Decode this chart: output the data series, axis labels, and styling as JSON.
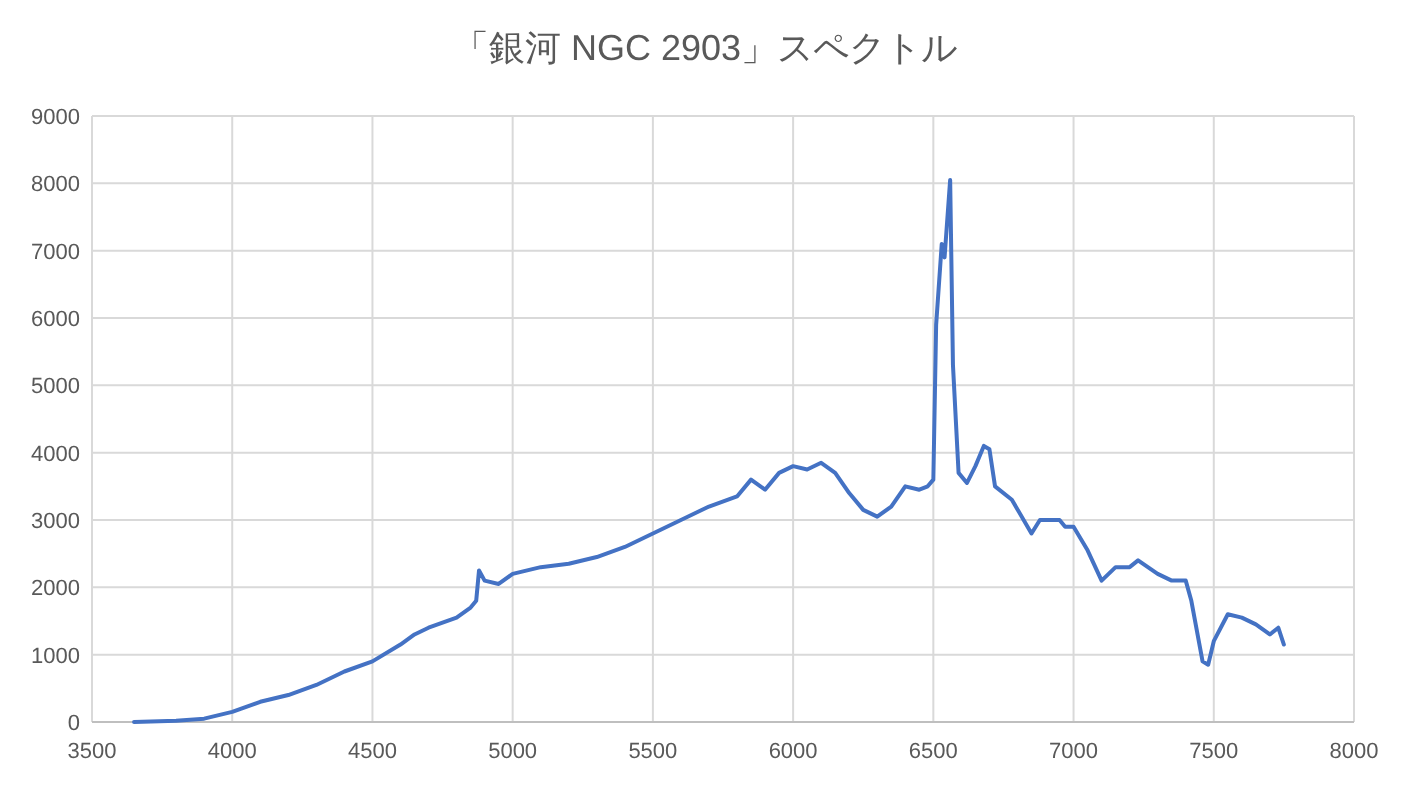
{
  "chart_data": {
    "type": "line",
    "title": "「銀河 NGC 2903」スペクトル",
    "x": [
      3650,
      3800,
      3900,
      4000,
      4100,
      4200,
      4300,
      4400,
      4500,
      4600,
      4650,
      4700,
      4800,
      4850,
      4870,
      4880,
      4900,
      4950,
      5000,
      5100,
      5200,
      5300,
      5400,
      5500,
      5600,
      5700,
      5800,
      5850,
      5900,
      5950,
      6000,
      6050,
      6100,
      6150,
      6200,
      6250,
      6300,
      6350,
      6400,
      6450,
      6480,
      6500,
      6510,
      6530,
      6540,
      6560,
      6570,
      6590,
      6620,
      6650,
      6680,
      6700,
      6720,
      6780,
      6850,
      6880,
      6950,
      6970,
      7000,
      7050,
      7100,
      7150,
      7200,
      7230,
      7300,
      7350,
      7400,
      7420,
      7460,
      7480,
      7500,
      7550,
      7600,
      7650,
      7700,
      7730,
      7750
    ],
    "series": [
      {
        "color": "#4472c4",
        "values": [
          0,
          20,
          50,
          150,
          300,
          400,
          550,
          750,
          900,
          1150,
          1300,
          1400,
          1550,
          1700,
          1800,
          2250,
          2100,
          2050,
          2200,
          2300,
          2350,
          2450,
          2600,
          2800,
          3000,
          3200,
          3350,
          3600,
          3450,
          3700,
          3800,
          3750,
          3850,
          3700,
          3400,
          3150,
          3050,
          3200,
          3500,
          3450,
          3500,
          3600,
          5900,
          7100,
          6900,
          8050,
          5300,
          3700,
          3550,
          3800,
          4100,
          4050,
          3500,
          3300,
          2800,
          3000,
          3000,
          2900,
          2900,
          2550,
          2100,
          2300,
          2300,
          2400,
          2200,
          2100,
          2100,
          1800,
          900,
          850,
          1200,
          1600,
          1550,
          1450,
          1300,
          1400,
          1150
        ]
      }
    ],
    "xlim": [
      3500,
      8000
    ],
    "xticks": [
      3500,
      4000,
      4500,
      5000,
      5500,
      6000,
      6500,
      7000,
      7500,
      8000
    ],
    "ylim": [
      0,
      9000
    ],
    "yticks": [
      0,
      1000,
      2000,
      3000,
      4000,
      5000,
      6000,
      7000,
      8000,
      9000
    ],
    "grid": true,
    "marker": "none",
    "line_style": "solid"
  }
}
